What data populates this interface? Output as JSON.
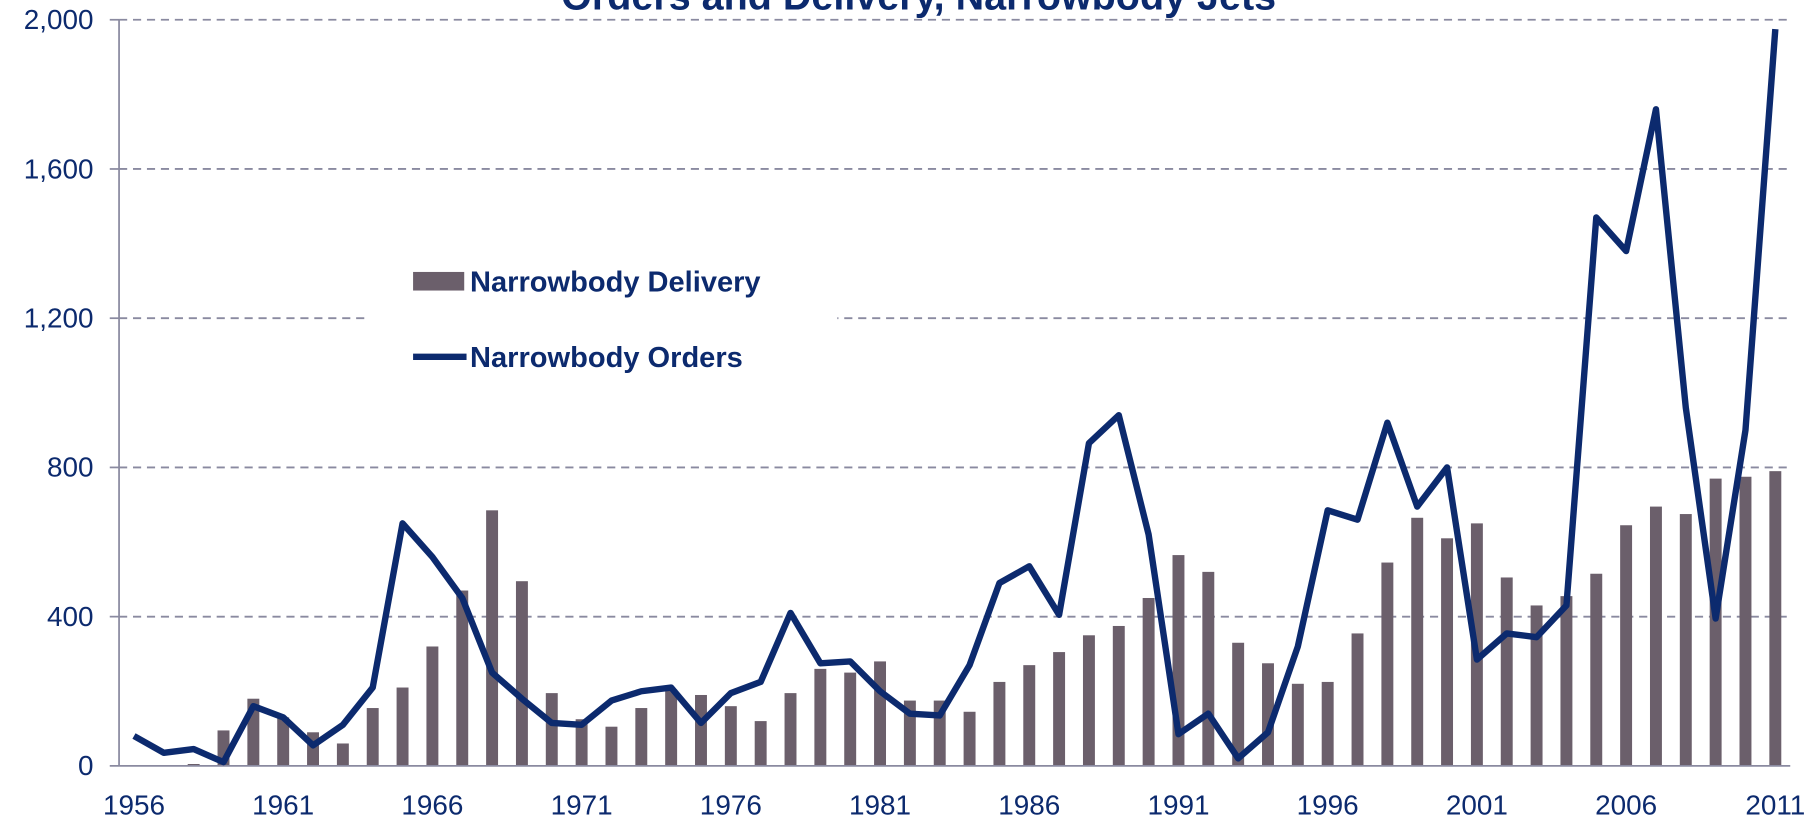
{
  "chart_data": {
    "type": "bar-line",
    "title": "Orders and Delivery, Narrowbody Jets",
    "categories": [
      "1956",
      null,
      null,
      null,
      null,
      "1961",
      null,
      null,
      null,
      null,
      "1966",
      null,
      null,
      null,
      null,
      "1971",
      null,
      null,
      null,
      null,
      "1976",
      null,
      null,
      null,
      null,
      "1981",
      null,
      null,
      null,
      null,
      "1986",
      null,
      null,
      null,
      null,
      "1991",
      null,
      null,
      null,
      null,
      "1996",
      null,
      null,
      null,
      null,
      "2001",
      null,
      null,
      null,
      null,
      "2006",
      null,
      null,
      null,
      null,
      "2011"
    ],
    "series": [
      {
        "name": "Narrowbody Delivery",
        "type": "bar",
        "color": "#6b5f6b",
        "values": [
          0,
          0,
          5,
          95,
          180,
          130,
          90,
          60,
          155,
          210,
          320,
          470,
          685,
          495,
          195,
          125,
          105,
          155,
          205,
          190,
          160,
          120,
          195,
          260,
          250,
          280,
          175,
          175,
          145,
          225,
          270,
          305,
          350,
          375,
          450,
          565,
          520,
          330,
          275,
          220,
          225,
          355,
          545,
          665,
          610,
          650,
          505,
          430,
          455,
          515,
          645,
          695,
          675,
          770,
          775,
          790
        ]
      },
      {
        "name": "Narrowbody Orders",
        "type": "line",
        "color": "#0c2a6e",
        "values": [
          80,
          35,
          45,
          10,
          160,
          130,
          55,
          110,
          210,
          650,
          560,
          450,
          250,
          180,
          115,
          110,
          175,
          200,
          210,
          115,
          195,
          225,
          410,
          275,
          280,
          200,
          140,
          135,
          270,
          490,
          535,
          405,
          865,
          940,
          620,
          85,
          140,
          20,
          90,
          320,
          685,
          660,
          920,
          695,
          800,
          285,
          355,
          345,
          430,
          1470,
          1380,
          1760,
          960,
          395,
          900,
          1975
        ]
      }
    ],
    "ylim": [
      0,
      2000
    ],
    "yticks": [
      0,
      400,
      800,
      {
        "value": 1200,
        "label": "1,200"
      },
      {
        "value": 1600,
        "label": "1,600"
      },
      {
        "value": 2000,
        "label": "2,000"
      }
    ],
    "grid": true,
    "legend": "upper left"
  }
}
